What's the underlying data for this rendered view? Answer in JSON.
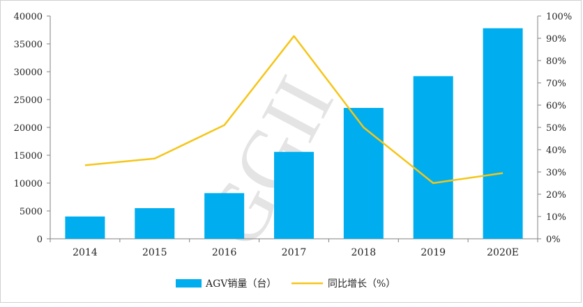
{
  "chart_data": {
    "type": "bar",
    "categories": [
      "2014",
      "2015",
      "2016",
      "2017",
      "2018",
      "2019",
      "2020E"
    ],
    "series": [
      {
        "name": "AGV销量（台）",
        "type": "bar",
        "axis": "left",
        "color": "#00AEEF",
        "values": [
          4000,
          5500,
          8200,
          15600,
          23500,
          29200,
          37800
        ]
      },
      {
        "name": "同比增长（%）",
        "type": "line",
        "axis": "right",
        "color": "#F5C518",
        "values": [
          33,
          36,
          51,
          91,
          50,
          25,
          29.5
        ]
      }
    ],
    "y_left": {
      "min": 0,
      "max": 40000,
      "step": 5000,
      "ticks": [
        "0",
        "5000",
        "10000",
        "15000",
        "20000",
        "25000",
        "30000",
        "35000",
        "40000"
      ]
    },
    "y_right": {
      "min": 0,
      "max": 100,
      "step": 10,
      "ticks": [
        "0%",
        "10%",
        "20%",
        "30%",
        "40%",
        "50%",
        "60%",
        "70%",
        "80%",
        "90%",
        "100%"
      ]
    },
    "grid": false,
    "legend_position": "bottom-center",
    "watermark": "GGII"
  }
}
